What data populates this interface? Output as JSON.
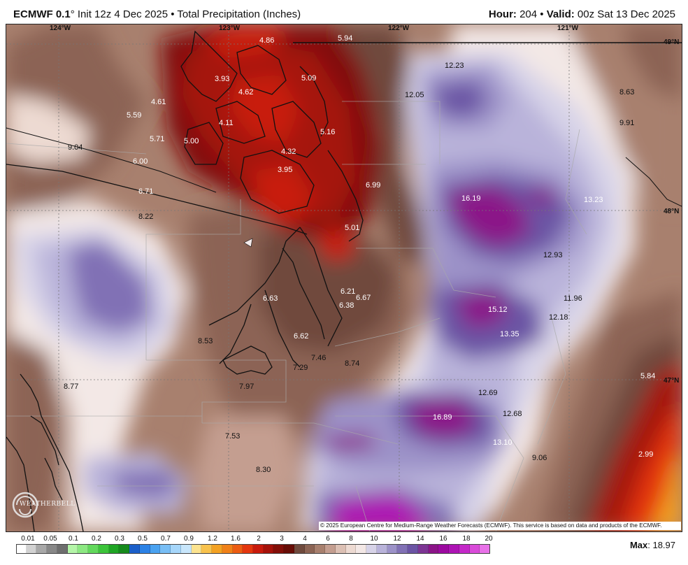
{
  "header": {
    "model": "ECMWF 0.1",
    "degree": "°",
    "init": " Init 12z 4 Dec 2025 • Total Precipitation (Inches)",
    "hour_label": "Hour:",
    "hour_value": " 204",
    "sep": " • ",
    "valid_label": "Valid:",
    "valid_value": " 00z Sat 13 Dec 2025"
  },
  "map": {
    "lon_labels": [
      "124°W",
      "123°W",
      "122°W",
      "121°W"
    ],
    "lat_labels": [
      "49°N",
      "48°N",
      "47°N"
    ],
    "point_values": [
      {
        "v": "4.86",
        "dark": false
      },
      {
        "v": "5.94",
        "dark": false
      },
      {
        "v": "12.23",
        "dark": true
      },
      {
        "v": "3.93",
        "dark": false
      },
      {
        "v": "4.62",
        "dark": false
      },
      {
        "v": "5.09",
        "dark": false
      },
      {
        "v": "12.05",
        "dark": true
      },
      {
        "v": "8.63",
        "dark": true
      },
      {
        "v": "4.61",
        "dark": false
      },
      {
        "v": "5.59",
        "dark": false
      },
      {
        "v": "4.11",
        "dark": false
      },
      {
        "v": "5.16",
        "dark": false
      },
      {
        "v": "9.91",
        "dark": true
      },
      {
        "v": "5.71",
        "dark": false
      },
      {
        "v": "5.00",
        "dark": false
      },
      {
        "v": "9.04",
        "dark": true
      },
      {
        "v": "4.32",
        "dark": false
      },
      {
        "v": "6.00",
        "dark": false
      },
      {
        "v": "3.95",
        "dark": false
      },
      {
        "v": "6.99",
        "dark": false
      },
      {
        "v": "6.71",
        "dark": false
      },
      {
        "v": "16.19",
        "dark": false
      },
      {
        "v": "13.23",
        "dark": false
      },
      {
        "v": "8.22",
        "dark": true
      },
      {
        "v": "5.01",
        "dark": false
      },
      {
        "v": "12.93",
        "dark": true
      },
      {
        "v": "6.21",
        "dark": false
      },
      {
        "v": "6.63",
        "dark": false
      },
      {
        "v": "6.67",
        "dark": false
      },
      {
        "v": "11.96",
        "dark": true
      },
      {
        "v": "6.38",
        "dark": false
      },
      {
        "v": "15.12",
        "dark": false
      },
      {
        "v": "12.18",
        "dark": true
      },
      {
        "v": "13.35",
        "dark": false
      },
      {
        "v": "6.62",
        "dark": false
      },
      {
        "v": "8.53",
        "dark": true
      },
      {
        "v": "7.46",
        "dark": true
      },
      {
        "v": "8.74",
        "dark": true
      },
      {
        "v": "7.29",
        "dark": true
      },
      {
        "v": "5.84",
        "dark": false
      },
      {
        "v": "8.77",
        "dark": true
      },
      {
        "v": "7.97",
        "dark": true
      },
      {
        "v": "12.69",
        "dark": true
      },
      {
        "v": "12.68",
        "dark": true
      },
      {
        "v": "16.89",
        "dark": false
      },
      {
        "v": "7.53",
        "dark": true
      },
      {
        "v": "13.10",
        "dark": false
      },
      {
        "v": "9.06",
        "dark": true
      },
      {
        "v": "2.99",
        "dark": false
      },
      {
        "v": "8.30",
        "dark": true
      }
    ],
    "copyright": "© 2025 European Centre for Medium-Range Weather Forecasts (ECMWF). This service is based on data and products of the ECMWF.",
    "logo": "WEATHERBELL"
  },
  "legend": {
    "labels": [
      "0.01",
      "0.05",
      "0.1",
      "0.2",
      "0.3",
      "0.5",
      "0.7",
      "0.9",
      "1.2",
      "1.6",
      "2",
      "3",
      "4",
      "6",
      "8",
      "10",
      "12",
      "14",
      "16",
      "18",
      "20"
    ],
    "colors": [
      "#ffffff",
      "#d2d2d2",
      "#a8a8a8",
      "#888888",
      "#6e6e6e",
      "#b4f5a8",
      "#8ce882",
      "#62d85c",
      "#3cc43a",
      "#1fa524",
      "#168a1c",
      "#1b5fc9",
      "#2b82e6",
      "#4aa2f0",
      "#78bef5",
      "#a6d6fa",
      "#c8e6fb",
      "#fce38f",
      "#f8c24c",
      "#f3a122",
      "#f08018",
      "#ec5c12",
      "#e4360e",
      "#c81a0c",
      "#a5120a",
      "#820f08",
      "#670d06",
      "#6f4a3d",
      "#8c6454",
      "#a8806e",
      "#c49e90",
      "#dcc0b4",
      "#eddad2",
      "#f3e8e6",
      "#d7d3e8",
      "#b9b3da",
      "#9c92c8",
      "#8171b5",
      "#6b54a4",
      "#7d3594",
      "#8b1488",
      "#9c0aa0",
      "#ad14b4",
      "#c428c8",
      "#d94bd9",
      "#e871e8"
    ],
    "max_label": "Max",
    "max_value": ": 18.97"
  }
}
